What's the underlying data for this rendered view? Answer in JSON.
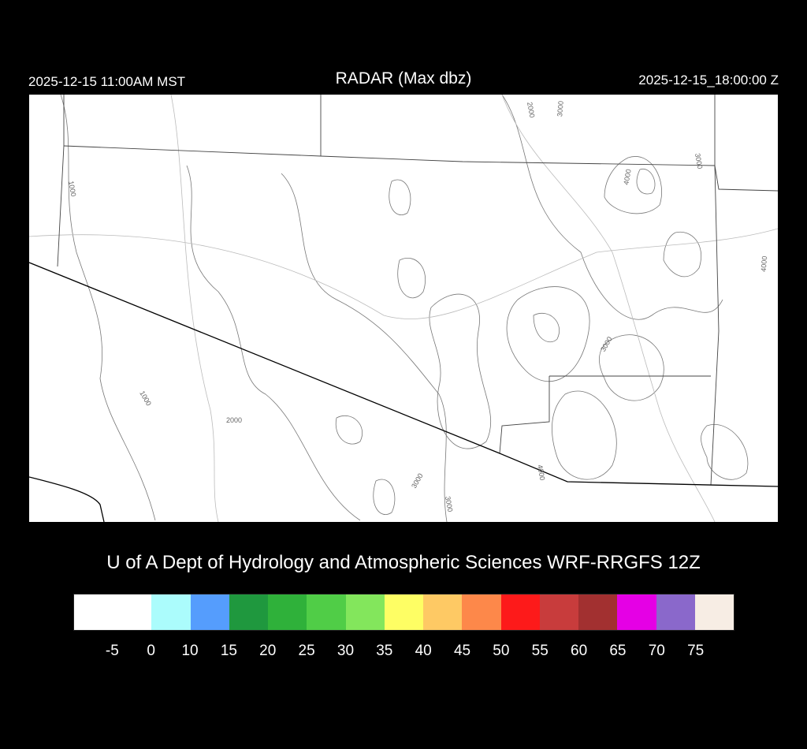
{
  "header": {
    "local_time": "2025-12-15 11:00AM MST",
    "title": "RADAR (Max dbz)",
    "valid_time": "2025-12-15_18:00:00 Z"
  },
  "map": {
    "contour_labels": [
      "1000",
      "1000",
      "2000",
      "3000",
      "3000",
      "2000",
      "3000",
      "4000",
      "3000",
      "4000",
      "3000",
      "4000"
    ],
    "echo_present": false
  },
  "credit": "U of A Dept of Hydrology and Atmospheric Sciences WRF-RRGFS 12Z",
  "colorbar": {
    "colors": [
      "#ffffff",
      "#ffffff",
      "#abfcfc",
      "#559dfd",
      "#1f983e",
      "#2fb13a",
      "#50cd47",
      "#83e65c",
      "#fefe64",
      "#fec964",
      "#fd884a",
      "#fd1a1a",
      "#c83c3c",
      "#a23030",
      "#e500e5",
      "#8a68cb",
      "#f7ede4"
    ],
    "labels": [
      "-5",
      "0",
      "10",
      "15",
      "20",
      "25",
      "30",
      "35",
      "40",
      "45",
      "50",
      "55",
      "60",
      "65",
      "70",
      "75"
    ]
  }
}
